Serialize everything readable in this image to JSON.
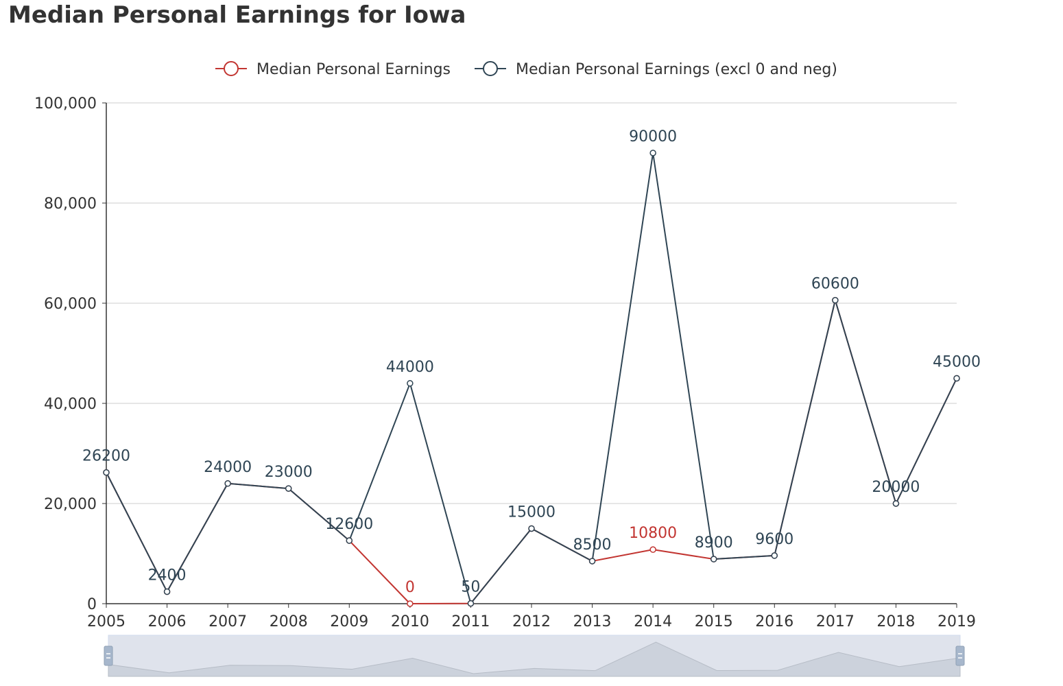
{
  "chart_data": {
    "type": "line",
    "title": "Median Personal Earnings for Iowa",
    "x": [
      "2005",
      "2006",
      "2007",
      "2008",
      "2009",
      "2010",
      "2011",
      "2012",
      "2013",
      "2014",
      "2015",
      "2016",
      "2017",
      "2018",
      "2019"
    ],
    "series": [
      {
        "name": "Median Personal Earnings",
        "color": "#c23531",
        "values": [
          26200,
          2400,
          24000,
          23000,
          12600,
          0,
          50,
          15000,
          8500,
          10800,
          8900,
          9600,
          60600,
          20000,
          45000
        ]
      },
      {
        "name": "Median Personal Earnings (excl 0 and neg)",
        "color": "#2f4554",
        "values": [
          26200,
          2400,
          24000,
          23000,
          12600,
          44000,
          50,
          15000,
          8500,
          90000,
          8900,
          9600,
          60600,
          20000,
          45000
        ]
      }
    ],
    "ylim": [
      0,
      100000
    ],
    "yticks": [
      "0",
      "20,000",
      "40,000",
      "60,000",
      "80,000",
      "100,000"
    ],
    "ytick_values": [
      0,
      20000,
      40000,
      60000,
      80000,
      100000
    ],
    "grid": true,
    "legend_position": "top-center",
    "data_zoom": {
      "start": 0,
      "end": 100
    }
  }
}
